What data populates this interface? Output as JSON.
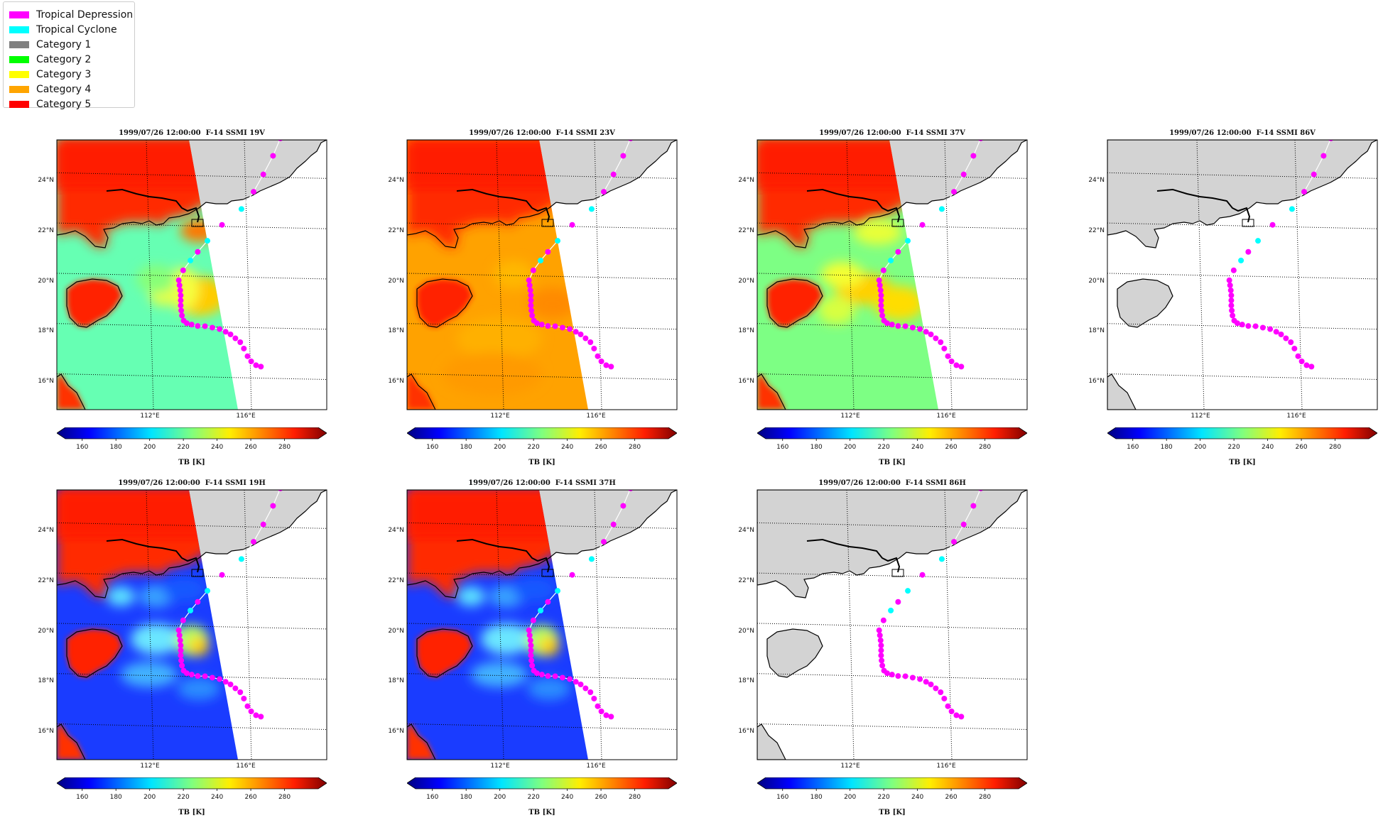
{
  "legend": {
    "items": [
      {
        "label": "Tropical Depression",
        "color": "#ff00ff"
      },
      {
        "label": "Tropical Cyclone",
        "color": "#00ffff"
      },
      {
        "label": "Category 1",
        "color": "#808080"
      },
      {
        "label": "Category 2",
        "color": "#00ff00"
      },
      {
        "label": "Category 3",
        "color": "#ffff00"
      },
      {
        "label": "Category 4",
        "color": "#ffa500"
      },
      {
        "label": "Category 5",
        "color": "#ff0000"
      }
    ]
  },
  "panels": [
    {
      "title": "1999/07/26 12:00:00  F-14 SSMI 19V",
      "ocean": "cyan",
      "land": "warm",
      "swath": true
    },
    {
      "title": "1999/07/26 12:00:00  F-14 SSMI 23V",
      "ocean": "orange",
      "land": "warm",
      "swath": true
    },
    {
      "title": "1999/07/26 12:00:00  F-14 SSMI 37V",
      "ocean": "green",
      "land": "warm",
      "swath": true
    },
    {
      "title": "1999/07/26 12:00:00  F-14 SSMI 86V",
      "ocean": "none",
      "land": "none",
      "swath": false
    },
    {
      "title": "1999/07/26 12:00:00  F-14 SSMI 19H",
      "ocean": "blue",
      "land": "warm",
      "swath": true
    },
    {
      "title": "1999/07/26 12:00:00  F-14 SSMI 37H",
      "ocean": "blue",
      "land": "warm",
      "swath": true
    },
    {
      "title": "1999/07/26 12:00:00  F-14 SSMI 86H",
      "ocean": "none",
      "land": "none",
      "swath": false
    }
  ],
  "map": {
    "lat_labels": [
      "24°N",
      "22°N",
      "20°N",
      "18°N",
      "16°N"
    ],
    "lon_labels": [
      "112°E",
      "116°E"
    ],
    "land_color": "#d3d3d3"
  },
  "colorbar": {
    "label": "TB [K]",
    "ticks": [
      "160",
      "180",
      "200",
      "220",
      "240",
      "260",
      "280"
    ],
    "range": [
      150,
      300
    ]
  },
  "track": {
    "colors": {
      "TD": "#ff00ff",
      "TC": "#00ffff"
    },
    "points": [
      {
        "lon": 116.8,
        "lat": 16.5,
        "c": "TD"
      },
      {
        "lon": 116.6,
        "lat": 16.55,
        "c": "TD"
      },
      {
        "lon": 116.4,
        "lat": 16.7,
        "c": "TD"
      },
      {
        "lon": 116.25,
        "lat": 16.9,
        "c": "TD"
      },
      {
        "lon": 116.1,
        "lat": 17.2,
        "c": "TD"
      },
      {
        "lon": 115.95,
        "lat": 17.45,
        "c": "TD"
      },
      {
        "lon": 115.75,
        "lat": 17.6,
        "c": "TD"
      },
      {
        "lon": 115.55,
        "lat": 17.75,
        "c": "TD"
      },
      {
        "lon": 115.35,
        "lat": 17.85,
        "c": "TD"
      },
      {
        "lon": 115.1,
        "lat": 17.95,
        "c": "TD"
      },
      {
        "lon": 114.8,
        "lat": 18.0,
        "c": "TD"
      },
      {
        "lon": 114.5,
        "lat": 18.05,
        "c": "TD"
      },
      {
        "lon": 114.2,
        "lat": 18.05,
        "c": "TD"
      },
      {
        "lon": 113.95,
        "lat": 18.1,
        "c": "TD"
      },
      {
        "lon": 113.75,
        "lat": 18.15,
        "c": "TD"
      },
      {
        "lon": 113.62,
        "lat": 18.25,
        "c": "TD"
      },
      {
        "lon": 113.55,
        "lat": 18.45,
        "c": "TD"
      },
      {
        "lon": 113.52,
        "lat": 18.65,
        "c": "TD"
      },
      {
        "lon": 113.5,
        "lat": 18.85,
        "c": "TD"
      },
      {
        "lon": 113.5,
        "lat": 19.05,
        "c": "TD"
      },
      {
        "lon": 113.5,
        "lat": 19.25,
        "c": "TD"
      },
      {
        "lon": 113.48,
        "lat": 19.45,
        "c": "TD"
      },
      {
        "lon": 113.45,
        "lat": 19.65,
        "c": "TD"
      },
      {
        "lon": 113.42,
        "lat": 19.85,
        "c": "TD"
      },
      {
        "lon": 113.6,
        "lat": 20.25,
        "c": "TD"
      },
      {
        "lon": 113.9,
        "lat": 20.65,
        "c": "TC"
      },
      {
        "lon": 114.2,
        "lat": 21.0,
        "c": "TD"
      },
      {
        "lon": 114.6,
        "lat": 21.45,
        "c": "TC"
      },
      {
        "lon": 115.2,
        "lat": 22.1,
        "c": "TD"
      },
      {
        "lon": 116.0,
        "lat": 22.75,
        "c": "TC"
      },
      {
        "lon": 116.5,
        "lat": 23.45,
        "c": "TD"
      },
      {
        "lon": 116.9,
        "lat": 24.15,
        "c": "TD"
      },
      {
        "lon": 117.3,
        "lat": 24.9,
        "c": "TD"
      },
      {
        "lon": 117.6,
        "lat": 25.6,
        "c": "TD"
      }
    ]
  }
}
